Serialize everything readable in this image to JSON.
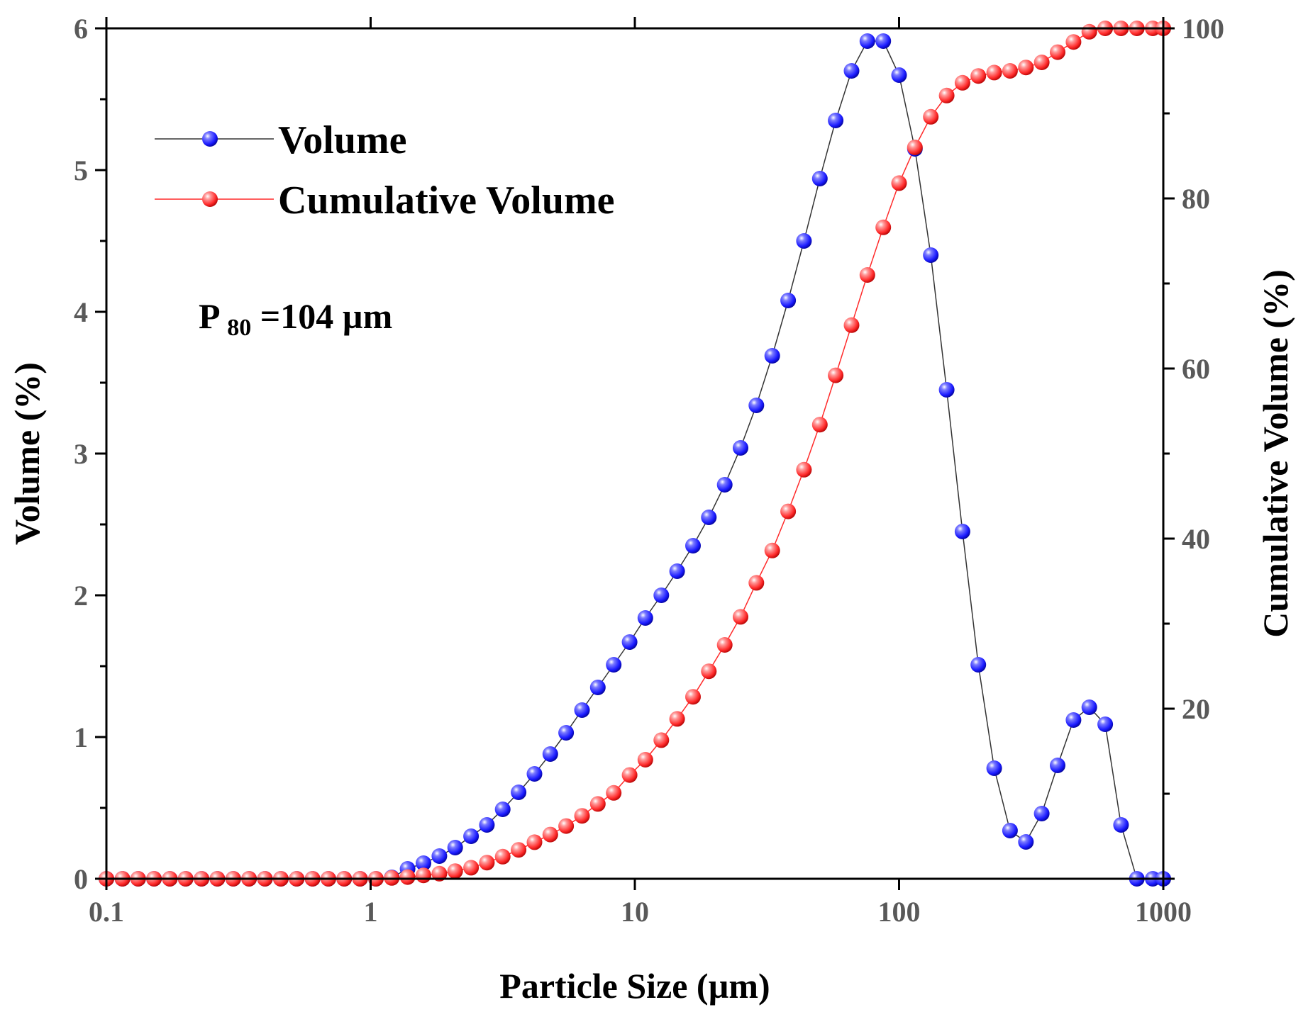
{
  "chart_data": {
    "type": "scatter",
    "xscale": "log",
    "xlim": [
      0.1,
      1000
    ],
    "ylim_left": [
      0,
      6
    ],
    "ylim_right": [
      0,
      100
    ],
    "xlabel": "Particle Size (µm)",
    "ylabel_left": "Volume (%)",
    "ylabel_right": "Cumulative Volume (%)",
    "x_ticks": [
      "0.1",
      "1",
      "10",
      "100",
      "1000"
    ],
    "y_left_ticks": [
      "0",
      "1",
      "2",
      "3",
      "4",
      "5",
      "6"
    ],
    "y_right_ticks": [
      "20",
      "40",
      "60",
      "80",
      "100"
    ],
    "grid": false,
    "legend_position": "top-left",
    "annotation": {
      "main": "P",
      "sub": "80",
      "rest": "=104 µm"
    },
    "x": [
      0.1,
      0.115,
      0.1318,
      0.1514,
      0.1738,
      0.1995,
      0.2291,
      0.263,
      0.302,
      0.3467,
      0.3981,
      0.4571,
      0.5248,
      0.6026,
      0.6918,
      0.7943,
      0.912,
      1.047,
      1.202,
      1.38,
      1.585,
      1.82,
      2.089,
      2.399,
      2.754,
      3.162,
      3.631,
      4.169,
      4.786,
      5.495,
      6.31,
      7.244,
      8.318,
      9.55,
      10.96,
      12.59,
      14.45,
      16.6,
      19.05,
      21.88,
      25.12,
      28.84,
      33.11,
      38.02,
      43.65,
      50.12,
      57.54,
      66.07,
      75.86,
      87.1,
      100,
      114.8,
      131.8,
      151.4,
      173.8,
      199.5,
      229.1,
      263,
      302,
      346.7,
      398.1,
      457.1,
      524.8,
      602.6,
      691.8,
      794.3,
      912,
      1000
    ],
    "series": [
      {
        "name": "Volume",
        "axis": "left",
        "color": "#1a1aff",
        "values": [
          0,
          0,
          0,
          0,
          0,
          0,
          0,
          0,
          0,
          0,
          0,
          0,
          0,
          0,
          0,
          0,
          0,
          0,
          0.01,
          0.07,
          0.11,
          0.16,
          0.22,
          0.3,
          0.38,
          0.49,
          0.61,
          0.74,
          0.88,
          1.03,
          1.19,
          1.35,
          1.51,
          1.67,
          1.84,
          2.0,
          2.17,
          2.35,
          2.55,
          2.78,
          3.04,
          3.34,
          3.69,
          4.08,
          4.5,
          4.94,
          5.35,
          5.7,
          5.91,
          5.91,
          5.67,
          5.15,
          4.4,
          3.45,
          2.45,
          1.51,
          0.78,
          0.34,
          0.26,
          0.46,
          0.8,
          1.12,
          1.21,
          1.09,
          0.38,
          0,
          0,
          0
        ]
      },
      {
        "name": "Cumulative Volume",
        "axis": "right",
        "color": "#ff2a2a",
        "values": [
          0,
          0,
          0,
          0,
          0,
          0,
          0,
          0,
          0,
          0,
          0,
          0,
          0,
          0,
          0,
          0,
          0,
          0,
          0.1,
          0.2,
          0.4,
          0.6,
          0.9,
          1.3,
          1.9,
          2.6,
          3.4,
          4.3,
          5.2,
          6.2,
          7.4,
          8.8,
          10.1,
          12.2,
          14.0,
          16.3,
          18.8,
          21.4,
          24.4,
          27.5,
          30.8,
          34.8,
          38.6,
          43.2,
          48.1,
          53.4,
          59.2,
          65.1,
          71.0,
          76.6,
          81.8,
          86.0,
          89.6,
          92.1,
          93.6,
          94.4,
          94.8,
          95.0,
          95.4,
          96.0,
          97.2,
          98.4,
          99.6,
          100,
          100,
          100,
          100,
          100
        ]
      }
    ]
  }
}
